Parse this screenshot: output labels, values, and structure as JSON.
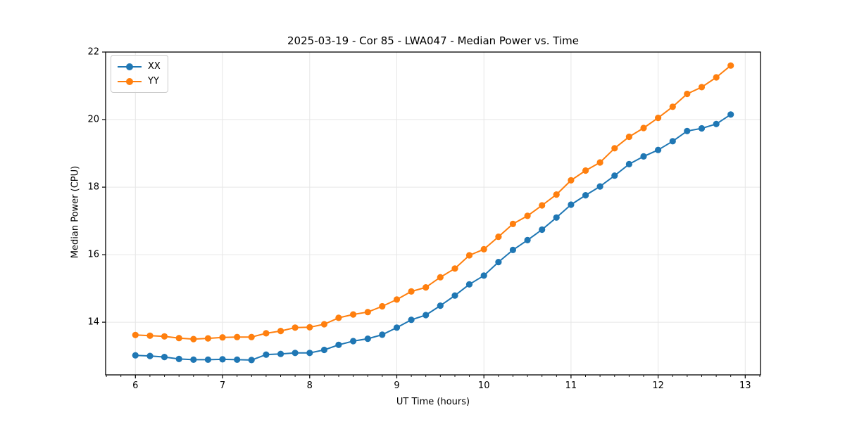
{
  "title": "2025-03-19 - Cor 85 - LWA047 - Median Power vs. Time",
  "chart_data": {
    "type": "line",
    "title": "2025-03-19 - Cor 85 - LWA047 - Median Power vs. Time",
    "xlabel": "UT Time (hours)",
    "ylabel": "Median Power (CPU)",
    "xlim": [
      5.658,
      13.175
    ],
    "ylim": [
      12.44,
      22.0
    ],
    "xticks": [
      6,
      7,
      8,
      9,
      10,
      11,
      12,
      13
    ],
    "yticks": [
      14,
      16,
      18,
      20,
      22
    ],
    "x_minor_tick_interval": 0.1667,
    "grid": true,
    "legend_position": "upper left",
    "marker": "circle",
    "x": [
      6.0,
      6.167,
      6.333,
      6.5,
      6.667,
      6.833,
      7.0,
      7.167,
      7.333,
      7.5,
      7.667,
      7.833,
      8.0,
      8.167,
      8.333,
      8.5,
      8.667,
      8.833,
      9.0,
      9.167,
      9.333,
      9.5,
      9.667,
      9.833,
      10.0,
      10.167,
      10.333,
      10.5,
      10.667,
      10.833,
      11.0,
      11.167,
      11.333,
      11.5,
      11.667,
      11.833,
      12.0,
      12.167,
      12.333,
      12.5,
      12.667,
      12.833
    ],
    "series": [
      {
        "name": "XX",
        "color": "#1f77b4",
        "values": [
          13.02,
          13.0,
          12.97,
          12.91,
          12.89,
          12.89,
          12.9,
          12.89,
          12.88,
          13.04,
          13.06,
          13.09,
          13.09,
          13.18,
          13.33,
          13.44,
          13.51,
          13.63,
          13.84,
          14.07,
          14.21,
          14.49,
          14.79,
          15.12,
          15.38,
          15.78,
          16.14,
          16.43,
          16.74,
          17.1,
          17.48,
          17.76,
          18.02,
          18.34,
          18.68,
          18.91,
          19.1,
          19.36,
          19.66,
          19.74,
          19.87,
          20.15
        ]
      },
      {
        "name": "YY",
        "color": "#ff7f0e",
        "values": [
          13.62,
          13.6,
          13.58,
          13.53,
          13.5,
          13.52,
          13.55,
          13.56,
          13.56,
          13.67,
          13.74,
          13.84,
          13.85,
          13.94,
          14.13,
          14.23,
          14.3,
          14.47,
          14.67,
          14.91,
          15.03,
          15.33,
          15.59,
          15.98,
          16.16,
          16.53,
          16.91,
          17.15,
          17.46,
          17.78,
          18.2,
          18.49,
          18.73,
          19.15,
          19.49,
          19.75,
          20.05,
          20.38,
          20.76,
          20.96,
          21.25,
          21.6
        ]
      }
    ]
  }
}
